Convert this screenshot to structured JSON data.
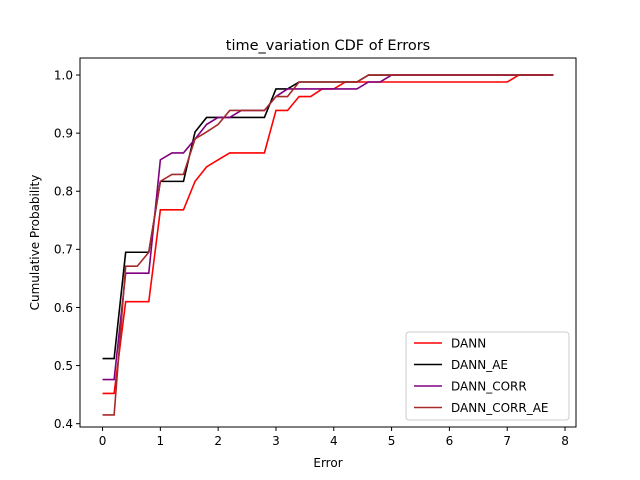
{
  "chart_data": {
    "type": "line",
    "title": "time_variation CDF of Errors",
    "xlabel": "Error",
    "ylabel": "Cumulative Probability",
    "xlim": [
      -0.39,
      8.19
    ],
    "ylim": [
      0.3943,
      1.0293
    ],
    "xticks": [
      "0",
      "1",
      "2",
      "3",
      "4",
      "5",
      "6",
      "7",
      "8"
    ],
    "yticks": [
      "0.4",
      "0.5",
      "0.6",
      "0.7",
      "0.8",
      "0.9",
      "1.0"
    ],
    "grid": false,
    "legend_position": "lower right",
    "series": [
      {
        "name": "DANN",
        "color": "#ff0000",
        "x": [
          0,
          0.2,
          0.4,
          0.6,
          0.8,
          1.0,
          1.2,
          1.4,
          1.6,
          1.8,
          2.0,
          2.2,
          2.4,
          2.6,
          2.8,
          3.0,
          3.2,
          3.4,
          3.6,
          3.8,
          4.0,
          4.2,
          4.4,
          4.6,
          4.8,
          5.0,
          7.0,
          7.2,
          7.8
        ],
        "y": [
          0.452,
          0.452,
          0.61,
          0.61,
          0.61,
          0.768,
          0.768,
          0.768,
          0.817,
          0.842,
          0.854,
          0.866,
          0.866,
          0.866,
          0.866,
          0.939,
          0.939,
          0.963,
          0.963,
          0.976,
          0.976,
          0.988,
          0.988,
          0.988,
          0.988,
          0.988,
          0.988,
          1.0,
          1.0
        ]
      },
      {
        "name": "DANN_AE",
        "color": "#000000",
        "x": [
          0,
          0.2,
          0.4,
          0.6,
          0.8,
          1.0,
          1.2,
          1.4,
          1.6,
          1.8,
          2.0,
          2.2,
          2.4,
          2.6,
          2.8,
          3.0,
          3.2,
          3.4,
          3.6,
          3.8,
          4.0,
          4.2,
          4.4,
          4.6,
          4.8,
          7.8
        ],
        "y": [
          0.512,
          0.512,
          0.695,
          0.695,
          0.695,
          0.817,
          0.817,
          0.817,
          0.902,
          0.927,
          0.927,
          0.927,
          0.927,
          0.927,
          0.927,
          0.976,
          0.976,
          0.988,
          0.988,
          0.988,
          0.988,
          0.988,
          0.988,
          1.0,
          1.0,
          1.0
        ]
      },
      {
        "name": "DANN_CORR",
        "color": "#800080",
        "x": [
          0,
          0.2,
          0.4,
          0.6,
          0.8,
          1.0,
          1.2,
          1.4,
          1.6,
          1.8,
          2.0,
          2.2,
          2.4,
          2.6,
          2.8,
          3.0,
          3.2,
          3.4,
          3.6,
          3.8,
          4.0,
          4.2,
          4.4,
          4.6,
          4.8,
          5.0,
          7.8
        ],
        "y": [
          0.476,
          0.476,
          0.659,
          0.659,
          0.659,
          0.854,
          0.866,
          0.866,
          0.89,
          0.915,
          0.927,
          0.927,
          0.939,
          0.939,
          0.939,
          0.963,
          0.976,
          0.976,
          0.976,
          0.976,
          0.976,
          0.976,
          0.976,
          0.988,
          0.988,
          1.0,
          1.0
        ]
      },
      {
        "name": "DANN_CORR_AE",
        "color": "#a52a2a",
        "x": [
          0,
          0.2,
          0.4,
          0.6,
          0.8,
          1.0,
          1.2,
          1.4,
          1.6,
          1.8,
          2.0,
          2.2,
          2.4,
          2.6,
          2.8,
          3.0,
          3.2,
          3.4,
          3.6,
          3.8,
          4.0,
          4.2,
          4.4,
          4.6,
          7.8
        ],
        "y": [
          0.415,
          0.415,
          0.671,
          0.671,
          0.695,
          0.817,
          0.829,
          0.829,
          0.89,
          0.902,
          0.915,
          0.939,
          0.939,
          0.939,
          0.939,
          0.963,
          0.963,
          0.988,
          0.988,
          0.988,
          0.988,
          0.988,
          0.988,
          1.0,
          1.0
        ]
      }
    ]
  }
}
